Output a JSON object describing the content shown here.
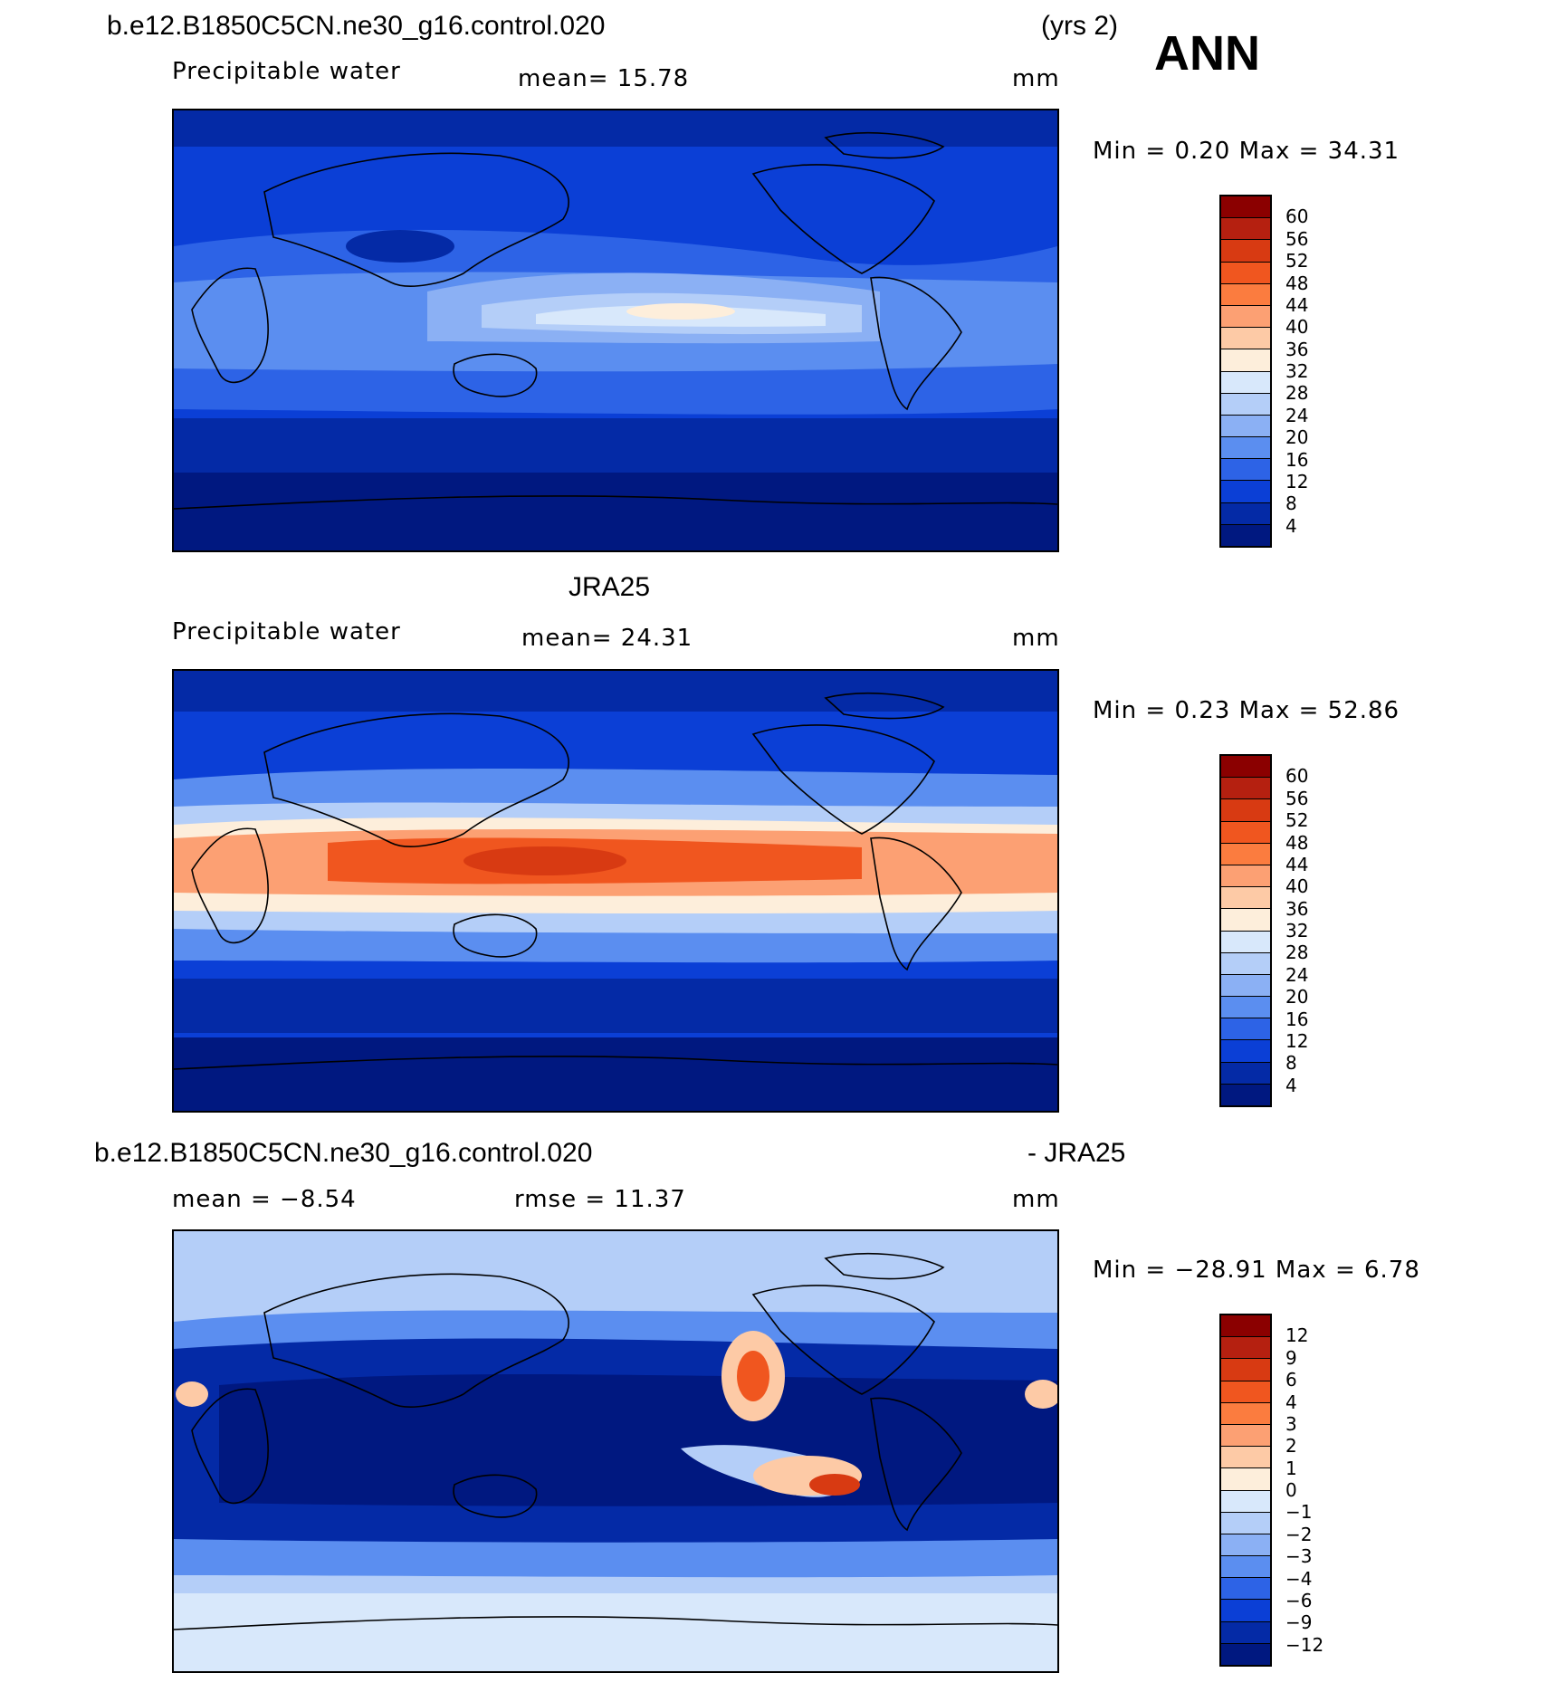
{
  "header": {
    "case": "b.e12.B1850C5CN.ne30_g16.control.020",
    "years": "(yrs 2)",
    "season": "ANN"
  },
  "panels": [
    {
      "title": "",
      "variable": "Precipitable water",
      "mean_text": "mean=   15.78",
      "units": "mm",
      "minmax_text": "Min =    0.20  Max =   34.31",
      "colorbar_ticks": [
        "60",
        "56",
        "52",
        "48",
        "44",
        "40",
        "36",
        "32",
        "28",
        "24",
        "20",
        "16",
        "12",
        "8",
        "4"
      ]
    },
    {
      "title": "JRA25",
      "variable": "Precipitable water",
      "mean_text": "mean=   24.31",
      "units": "mm",
      "minmax_text": "Min =    0.23  Max =   52.86",
      "colorbar_ticks": [
        "60",
        "56",
        "52",
        "48",
        "44",
        "40",
        "36",
        "32",
        "28",
        "24",
        "20",
        "16",
        "12",
        "8",
        "4"
      ]
    },
    {
      "title_left": "b.e12.B1850C5CN.ne30_g16.control.020",
      "title_right": "- JRA25",
      "mean_text": "mean =   −8.54",
      "rmse_text": "rmse =   11.37",
      "units": "mm",
      "minmax_text": "Min = −28.91  Max =    6.78",
      "colorbar_ticks": [
        "12",
        "9",
        "6",
        "4",
        "3",
        "2",
        "1",
        "0",
        "−1",
        "−2",
        "−3",
        "−4",
        "−6",
        "−9",
        "−12"
      ]
    }
  ],
  "colors": {
    "abs_scale": [
      "#8b0000",
      "#b52010",
      "#d83a12",
      "#f0561f",
      "#fb7c3f",
      "#fca073",
      "#fdcaa6",
      "#fdeedb",
      "#d8e8fb",
      "#b4cef8",
      "#8bb0f4",
      "#5b8ef0",
      "#2d63e6",
      "#0b3fd6",
      "#042aa6",
      "#001880"
    ],
    "diff_scale": [
      "#8b0000",
      "#b52010",
      "#d83a12",
      "#f0561f",
      "#fb7c3f",
      "#fca073",
      "#fdcaa6",
      "#fdeedb",
      "#d8e8fb",
      "#b4cef8",
      "#8bb0f4",
      "#5b8ef0",
      "#2d63e6",
      "#0b3fd6",
      "#042aa6",
      "#001880"
    ],
    "coastline": "#000000"
  },
  "chart_data": [
    {
      "type": "heatmap",
      "title": "Precipitable water",
      "units": "mm",
      "mean": 15.78,
      "min": 0.2,
      "max": 34.31,
      "contour_levels": [
        4,
        8,
        12,
        16,
        20,
        24,
        28,
        32,
        36,
        40,
        44,
        48,
        52,
        56,
        60
      ]
    },
    {
      "type": "heatmap",
      "title": "JRA25",
      "units": "mm",
      "mean": 24.31,
      "min": 0.23,
      "max": 52.86,
      "contour_levels": [
        4,
        8,
        12,
        16,
        20,
        24,
        28,
        32,
        36,
        40,
        44,
        48,
        52,
        56,
        60
      ]
    },
    {
      "type": "heatmap",
      "title": "b.e12.B1850C5CN.ne30_g16.control.020 - JRA25",
      "units": "mm",
      "mean": -8.54,
      "rmse": 11.37,
      "min": -28.91,
      "max": 6.78,
      "contour_levels": [
        -12,
        -9,
        -6,
        -4,
        -3,
        -2,
        -1,
        0,
        1,
        2,
        3,
        4,
        6,
        9,
        12
      ]
    }
  ]
}
